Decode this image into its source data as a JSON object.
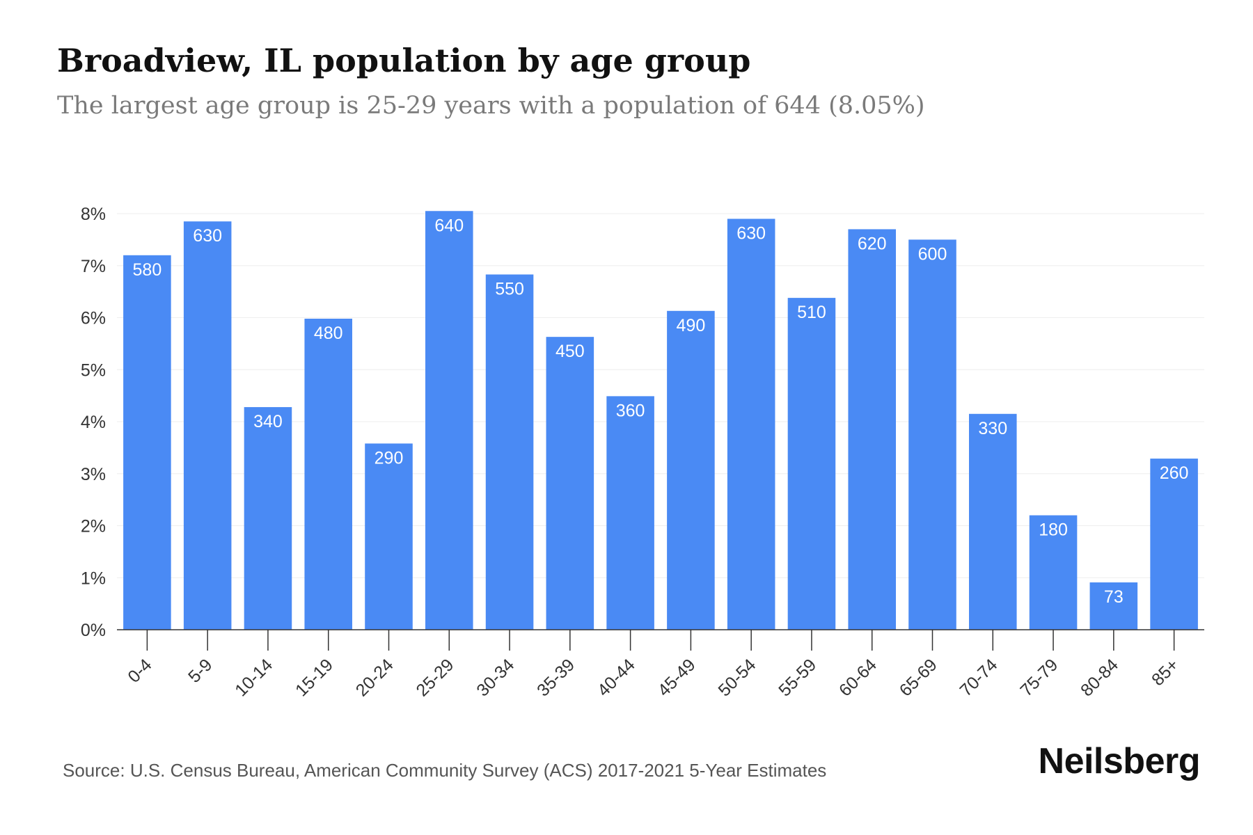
{
  "header": {
    "title": "Broadview, IL population by age group",
    "subtitle": "The largest age group is 25-29 years with a population of 644 (8.05%)"
  },
  "footer": {
    "source": "Source: U.S. Census Bureau, American Community Survey (ACS) 2017-2021 5-Year Estimates",
    "brand": "Neilsberg"
  },
  "chart_data": {
    "type": "bar",
    "title": "Broadview, IL population by age group",
    "subtitle": "The largest age group is 25-29 years with a population of 644 (8.05%)",
    "categories": [
      "0-4",
      "5-9",
      "10-14",
      "15-19",
      "20-24",
      "25-29",
      "30-34",
      "35-39",
      "40-44",
      "45-49",
      "50-54",
      "55-59",
      "60-64",
      "65-69",
      "70-74",
      "75-79",
      "80-84",
      "85+"
    ],
    "values": [
      7.2,
      7.85,
      4.28,
      5.98,
      3.58,
      8.05,
      6.83,
      5.63,
      4.49,
      6.13,
      7.9,
      6.38,
      7.7,
      7.5,
      4.15,
      2.2,
      0.91,
      3.29
    ],
    "data_labels": [
      "580",
      "630",
      "340",
      "480",
      "290",
      "640",
      "550",
      "450",
      "360",
      "490",
      "630",
      "510",
      "620",
      "600",
      "330",
      "180",
      "73",
      "260"
    ],
    "y_ticks": [
      "0%",
      "1%",
      "2%",
      "3%",
      "4%",
      "5%",
      "6%",
      "7%",
      "8%"
    ],
    "ylim": [
      0,
      8
    ],
    "y_unit": "%",
    "grid": true,
    "colors": {
      "bar": "#4a8af4",
      "label": "#ffffff",
      "axis": "#333333",
      "grid": "#eeeeee",
      "tick_text": "#333333"
    }
  }
}
